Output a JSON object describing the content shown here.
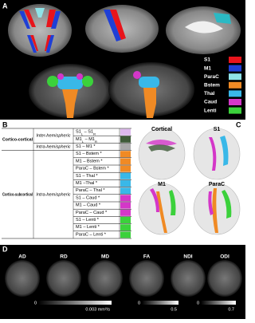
{
  "panel_a": {
    "label": "A",
    "legend": [
      {
        "name": "S1",
        "color": "#e8141b"
      },
      {
        "name": "M1",
        "color": "#1f3fd6"
      },
      {
        "name": "ParaC",
        "color": "#8fe3e8"
      },
      {
        "name": "Bstem",
        "color": "#f08a24"
      },
      {
        "name": "Thal",
        "color": "#39b8e8"
      },
      {
        "name": "Caud",
        "color": "#d437c8"
      },
      {
        "name": "Lenti",
        "color": "#3bd13b"
      }
    ]
  },
  "panel_b": {
    "label": "B",
    "categories": [
      {
        "name": "Cortico-cortical",
        "hemispheres": [
          {
            "name": "Inter-hemispheric",
            "pairs": [
              {
                "parts": [
                  "S1",
                  "L",
                  " – S1",
                  "R"
                ],
                "color": "#dcb8ec"
              },
              {
                "parts": [
                  "M1",
                  "L",
                  " – M1",
                  "R"
                ],
                "color": "#3e5a38"
              }
            ]
          },
          {
            "name": "Intra-hemispheric",
            "pairs": [
              {
                "parts": [
                  "S1 – M1 *"
                ],
                "color": "#a9a9a9"
              }
            ]
          }
        ]
      },
      {
        "name": "Cortico-subcortical",
        "hemispheres": [
          {
            "name": "Intra-hemispheric",
            "pairs": [
              {
                "parts": [
                  "S1 – Bstem *"
                ],
                "color": "#f08a24"
              },
              {
                "parts": [
                  "M1 – Bstem *"
                ],
                "color": "#f08a24"
              },
              {
                "parts": [
                  "ParaC – Bstem *"
                ],
                "color": "#f08a24"
              },
              {
                "parts": [
                  "S1 – Thal *"
                ],
                "color": "#39b8e8"
              },
              {
                "parts": [
                  "M1 –Thal *"
                ],
                "color": "#39b8e8"
              },
              {
                "parts": [
                  "ParaC – Thal *"
                ],
                "color": "#39b8e8"
              },
              {
                "parts": [
                  "S1 – Caud *"
                ],
                "color": "#d437c8"
              },
              {
                "parts": [
                  "M1 – Caud *"
                ],
                "color": "#d437c8"
              },
              {
                "parts": [
                  "ParaC – Caud *"
                ],
                "color": "#d437c8"
              },
              {
                "parts": [
                  "S1 – Lenti *"
                ],
                "color": "#3bd13b"
              },
              {
                "parts": [
                  "M1 – Lenti *"
                ],
                "color": "#3bd13b"
              },
              {
                "parts": [
                  "ParaC – Lenti *"
                ],
                "color": "#3bd13b"
              }
            ]
          }
        ]
      }
    ]
  },
  "panel_c": {
    "label": "C",
    "titles": [
      "Cortical",
      "S1",
      "M1",
      "ParaC"
    ]
  },
  "panel_d": {
    "label": "D",
    "maps": [
      "AD",
      "RD",
      "MD",
      "FA",
      "NDI",
      "ODI"
    ],
    "colorbars": [
      {
        "min": "0",
        "max": "0.003 mm²/s"
      },
      {
        "min": "0",
        "max": "0.5"
      },
      {
        "min": "0",
        "max": "0.7"
      }
    ]
  }
}
